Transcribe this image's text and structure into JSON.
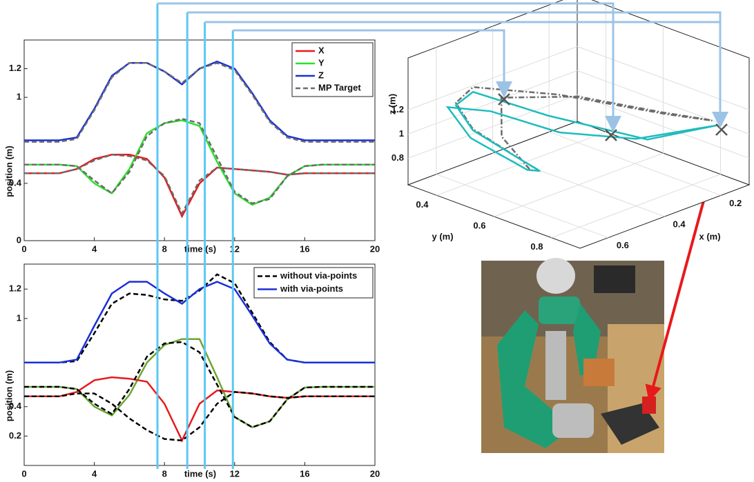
{
  "via_points": [
    7.6,
    9.3,
    10.3,
    11.9
  ],
  "chart_data": [
    {
      "type": "line",
      "xlabel": "time (s)",
      "ylabel": "position (m)",
      "x": [
        0,
        1,
        2,
        3,
        4,
        5,
        6,
        7,
        8,
        9,
        10,
        11,
        12,
        13,
        14,
        15,
        16,
        17,
        18,
        19,
        20
      ],
      "xlim": [
        0,
        20
      ],
      "xticks": [
        0,
        4,
        8,
        12,
        16,
        20
      ],
      "ylim": [
        0,
        1.4
      ],
      "yticks": [
        0,
        0.4,
        1,
        1.2
      ],
      "legend": "upper right",
      "series": [
        {
          "name": "X",
          "color": "#e8191b",
          "values": [
            0.47,
            0.47,
            0.47,
            0.5,
            0.57,
            0.6,
            0.6,
            0.57,
            0.44,
            0.17,
            0.4,
            0.51,
            0.5,
            0.49,
            0.48,
            0.46,
            0.47,
            0.47,
            0.47,
            0.47,
            0.47
          ]
        },
        {
          "name": "Y",
          "color": "#2be02b",
          "values": [
            0.53,
            0.53,
            0.53,
            0.52,
            0.4,
            0.33,
            0.5,
            0.75,
            0.82,
            0.84,
            0.8,
            0.55,
            0.33,
            0.25,
            0.3,
            0.45,
            0.52,
            0.53,
            0.53,
            0.53,
            0.53
          ]
        },
        {
          "name": "Z",
          "color": "#1a2fd8",
          "values": [
            0.7,
            0.7,
            0.7,
            0.72,
            0.92,
            1.15,
            1.24,
            1.24,
            1.18,
            1.09,
            1.2,
            1.25,
            1.2,
            1.03,
            0.84,
            0.73,
            0.7,
            0.7,
            0.7,
            0.7,
            0.7
          ]
        },
        {
          "name": "MP Target",
          "color": "#6b6b6b",
          "linestyle": "dashed",
          "values": [
            0.69,
            0.69,
            0.69,
            0.71,
            0.91,
            1.14,
            1.24,
            1.24,
            1.18,
            1.1,
            1.2,
            1.24,
            1.19,
            1.02,
            0.83,
            0.72,
            0.69,
            0.69,
            0.69,
            0.69,
            0.69
          ]
        },
        {
          "color": "#6b6b6b",
          "linestyle": "dashed",
          "values": [
            0.53,
            0.53,
            0.53,
            0.52,
            0.42,
            0.33,
            0.48,
            0.73,
            0.82,
            0.85,
            0.82,
            0.58,
            0.34,
            0.26,
            0.29,
            0.45,
            0.52,
            0.53,
            0.53,
            0.53,
            0.53
          ]
        },
        {
          "color": "#6b6b6b",
          "linestyle": "dashed",
          "values": [
            0.47,
            0.47,
            0.47,
            0.5,
            0.56,
            0.6,
            0.59,
            0.56,
            0.45,
            0.19,
            0.42,
            0.51,
            0.5,
            0.49,
            0.48,
            0.46,
            0.47,
            0.47,
            0.47,
            0.47,
            0.47
          ]
        }
      ]
    },
    {
      "type": "line",
      "xlabel": "time (s)",
      "ylabel": "position (m)",
      "x": [
        0,
        1,
        2,
        3,
        4,
        5,
        6,
        7,
        8,
        9,
        10,
        11,
        12,
        13,
        14,
        15,
        16,
        17,
        18,
        19,
        20
      ],
      "xlim": [
        0,
        20
      ],
      "xticks": [
        0,
        4,
        8,
        12,
        16,
        20
      ],
      "ylim": [
        0,
        1.37
      ],
      "yticks": [
        0.2,
        0.4,
        1,
        1.2
      ],
      "legend": "upper right",
      "series": [
        {
          "name": "without via-points",
          "color": "#000000",
          "linestyle": "dashed",
          "values": [
            0.7,
            0.7,
            0.7,
            0.71,
            0.9,
            1.1,
            1.17,
            1.16,
            1.13,
            1.12,
            1.19,
            1.3,
            1.24,
            1.04,
            0.84,
            0.72,
            0.7,
            0.7,
            0.7,
            0.7,
            0.7
          ]
        },
        {
          "name": "with via-points",
          "color": "#1a2fd8",
          "values": [
            0.7,
            0.7,
            0.7,
            0.72,
            0.95,
            1.17,
            1.25,
            1.25,
            1.17,
            1.1,
            1.2,
            1.25,
            1.2,
            1.02,
            0.83,
            0.72,
            0.7,
            0.7,
            0.7,
            0.7,
            0.7
          ]
        },
        {
          "color": "#6aa632",
          "values": [
            0.535,
            0.535,
            0.535,
            0.52,
            0.4,
            0.34,
            0.48,
            0.7,
            0.82,
            0.86,
            0.86,
            0.6,
            0.33,
            0.26,
            0.3,
            0.45,
            0.53,
            0.535,
            0.535,
            0.535,
            0.535
          ]
        },
        {
          "color": "#e8191b",
          "values": [
            0.47,
            0.47,
            0.47,
            0.5,
            0.58,
            0.6,
            0.59,
            0.57,
            0.42,
            0.17,
            0.42,
            0.51,
            0.5,
            0.49,
            0.47,
            0.46,
            0.47,
            0.47,
            0.47,
            0.47,
            0.47
          ]
        },
        {
          "color": "#000000",
          "linestyle": "dashed",
          "values": [
            0.535,
            0.535,
            0.535,
            0.52,
            0.42,
            0.35,
            0.52,
            0.74,
            0.83,
            0.84,
            0.77,
            0.55,
            0.33,
            0.26,
            0.3,
            0.45,
            0.53,
            0.535,
            0.535,
            0.535,
            0.535
          ]
        },
        {
          "color": "#000000",
          "linestyle": "dashed",
          "values": [
            0.47,
            0.47,
            0.47,
            0.49,
            0.49,
            0.42,
            0.32,
            0.24,
            0.18,
            0.17,
            0.26,
            0.42,
            0.5,
            0.49,
            0.47,
            0.46,
            0.47,
            0.47,
            0.47,
            0.47,
            0.47
          ]
        }
      ]
    },
    {
      "type": "line3d",
      "xlabel": "x (m)",
      "ylabel": "y (m)",
      "zlabel": "z (m)",
      "xlim": [
        0.1,
        0.7
      ],
      "ylim": [
        0.3,
        0.9
      ],
      "zlim": [
        0.58,
        1.63
      ],
      "xticks": [
        0.2,
        0.4,
        0.6
      ],
      "yticks": [
        0.4,
        0.6,
        0.8
      ],
      "zticks": [
        0.8,
        1,
        1.2
      ],
      "series": [
        {
          "color": "#6b6b6b",
          "linestyle": "dashdot",
          "x": [
            0.47,
            0.49,
            0.49,
            0.42,
            0.32,
            0.24,
            0.18,
            0.17,
            0.26,
            0.42,
            0.5,
            0.49,
            0.47,
            0.46,
            0.47
          ],
          "y": [
            0.535,
            0.52,
            0.42,
            0.35,
            0.52,
            0.74,
            0.83,
            0.84,
            0.77,
            0.55,
            0.33,
            0.26,
            0.3,
            0.45,
            0.53
          ],
          "z": [
            0.7,
            0.71,
            0.9,
            1.1,
            1.17,
            1.16,
            1.13,
            1.12,
            1.19,
            1.3,
            1.24,
            1.04,
            0.84,
            0.72,
            0.7
          ]
        },
        {
          "color": "#1fbcbc",
          "x": [
            0.47,
            0.5,
            0.58,
            0.6,
            0.59,
            0.57,
            0.42,
            0.17,
            0.42,
            0.51,
            0.5,
            0.49,
            0.47,
            0.46,
            0.47
          ],
          "y": [
            0.535,
            0.52,
            0.4,
            0.34,
            0.48,
            0.7,
            0.82,
            0.86,
            0.86,
            0.6,
            0.33,
            0.26,
            0.3,
            0.45,
            0.53
          ],
          "z": [
            0.7,
            0.72,
            0.95,
            1.17,
            1.25,
            1.25,
            1.17,
            1.1,
            1.2,
            1.25,
            1.2,
            1.02,
            0.83,
            0.72,
            0.7
          ]
        }
      ]
    }
  ]
}
